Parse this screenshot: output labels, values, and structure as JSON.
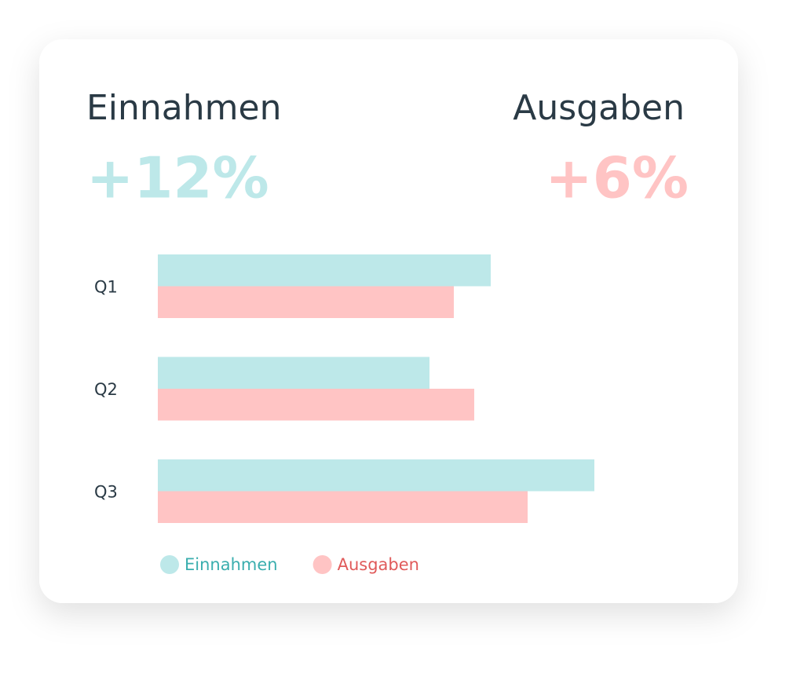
{
  "chart_data": {
    "type": "barh",
    "summary": [
      {
        "label": "Einnahmen",
        "change": "+12%"
      },
      {
        "label": "Ausgaben",
        "change": "+6%"
      }
    ],
    "categories": [
      "Q1",
      "Q2",
      "Q3"
    ],
    "series": [
      {
        "name": "Einnahmen",
        "color": "#bde8e9",
        "text_color": "#3aaeae",
        "values": [
          424,
          346,
          556
        ]
      },
      {
        "name": "Ausgaben",
        "color": "#ffc4c4",
        "text_color": "#e05a5a",
        "values": [
          377,
          403,
          471
        ]
      }
    ],
    "xlim": [
      0,
      600
    ]
  }
}
